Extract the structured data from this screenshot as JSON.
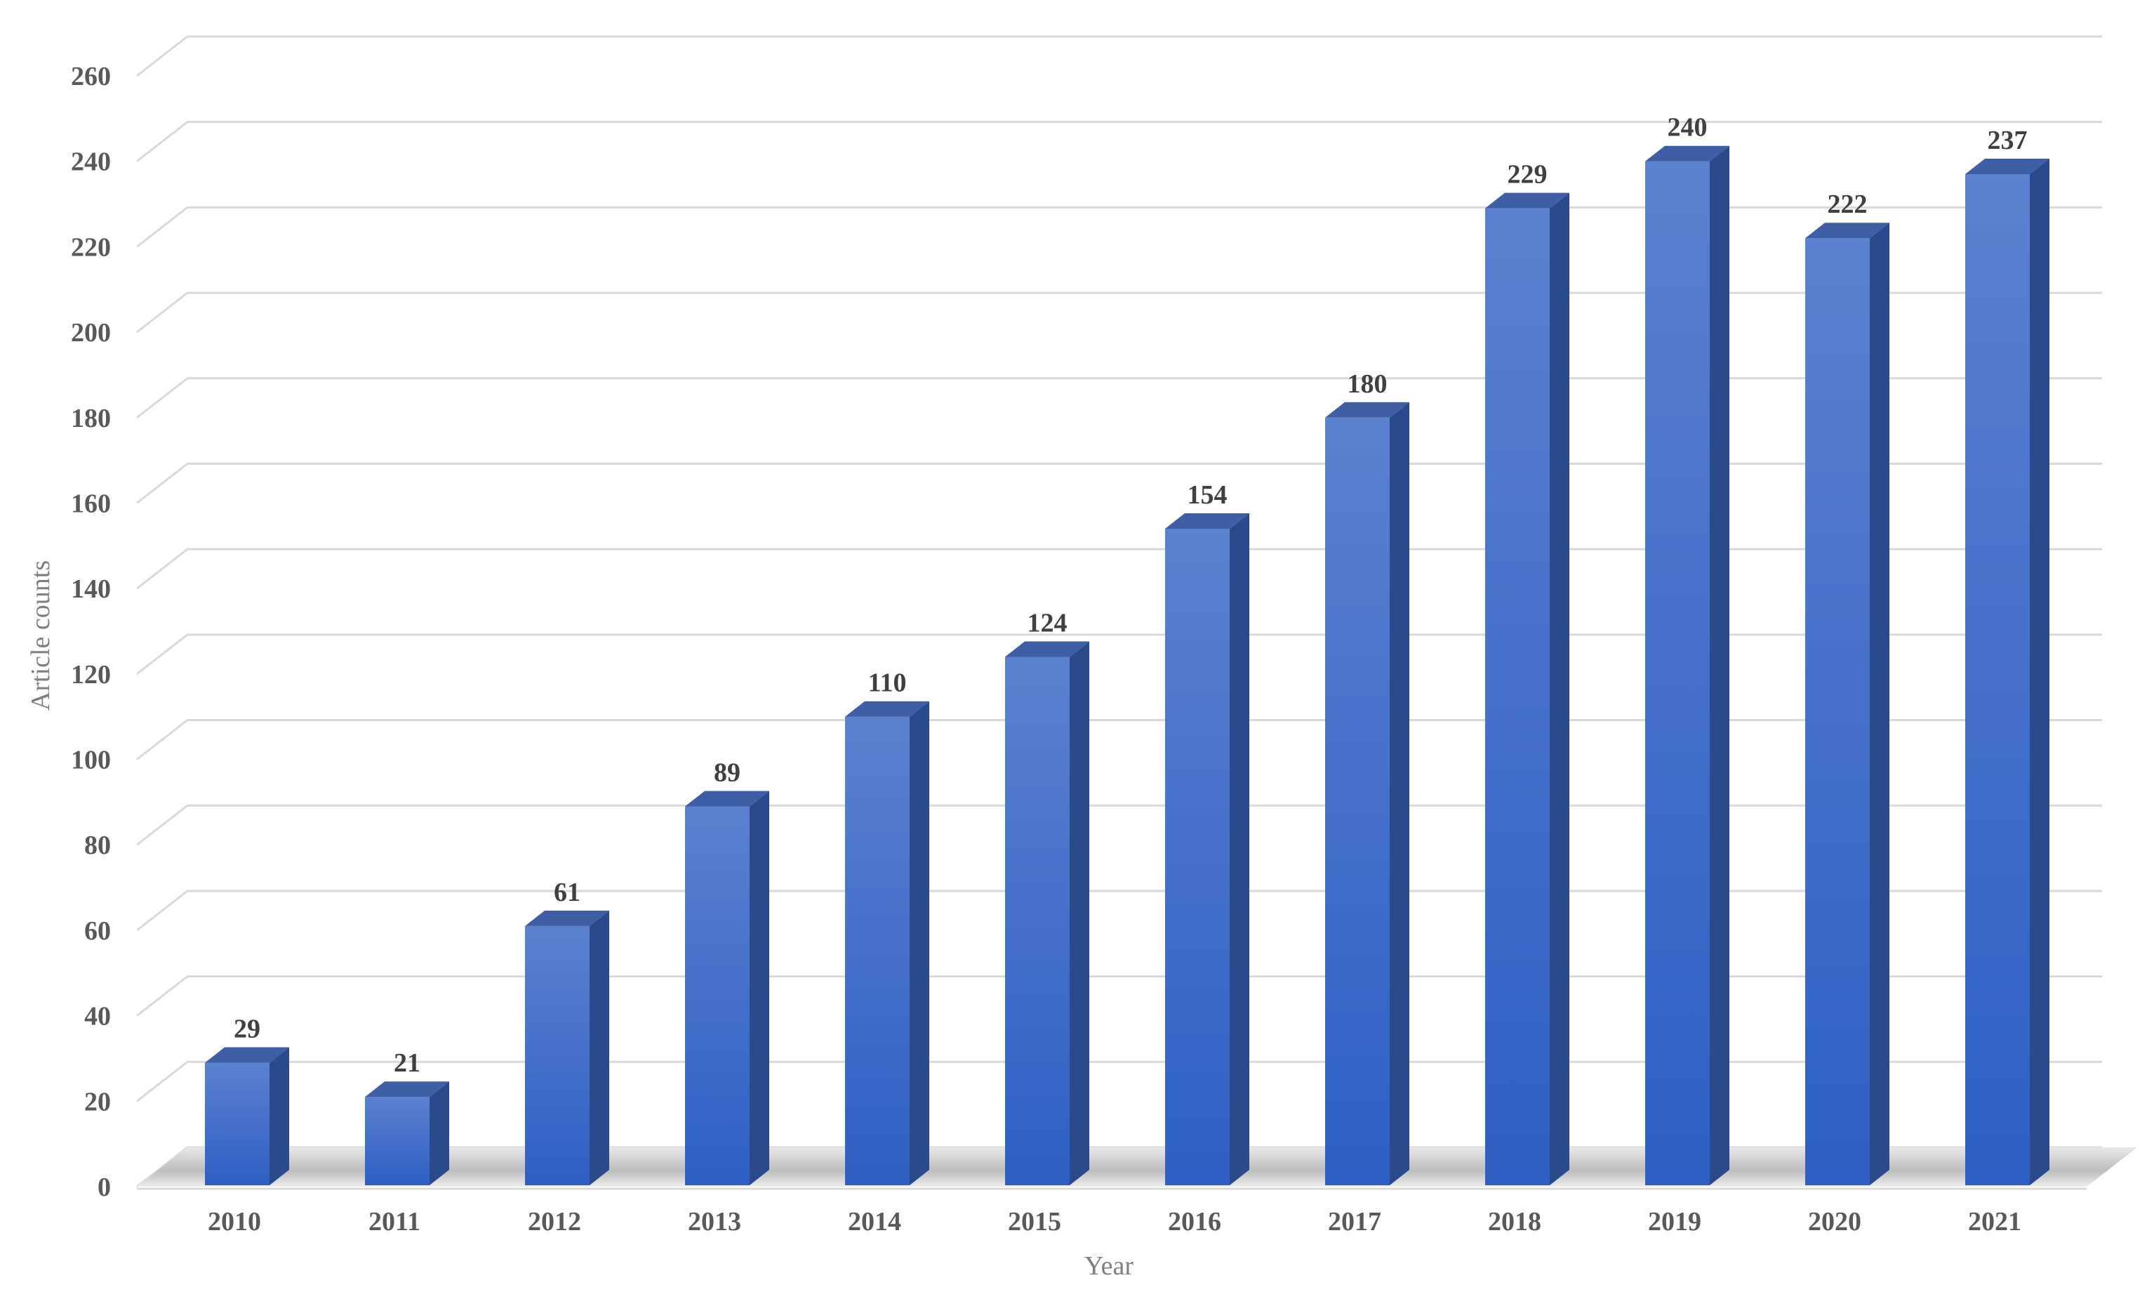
{
  "chart_data": {
    "type": "bar",
    "style": "3d-column",
    "categories": [
      "2010",
      "2011",
      "2012",
      "2013",
      "2014",
      "2015",
      "2016",
      "2017",
      "2018",
      "2019",
      "2020",
      "2021"
    ],
    "values": [
      29,
      21,
      61,
      89,
      110,
      124,
      154,
      180,
      229,
      240,
      222,
      237
    ],
    "title": "",
    "xlabel": "Year",
    "ylabel": "Article counts",
    "ylim": [
      0,
      260
    ],
    "yticks": [
      0,
      20,
      40,
      60,
      80,
      100,
      120,
      140,
      160,
      180,
      200,
      220,
      240,
      260
    ],
    "grid": true,
    "legend": "none",
    "data_labels": true,
    "colors": {
      "bar_front_top": "#5b81cf",
      "bar_front_bottom": "#2d5fc4",
      "bar_side": "#2a4a8c",
      "bar_top": "#3e5ea6",
      "gridline": "#d9d9d9",
      "floor_shadow": "#bfbfbf"
    }
  }
}
